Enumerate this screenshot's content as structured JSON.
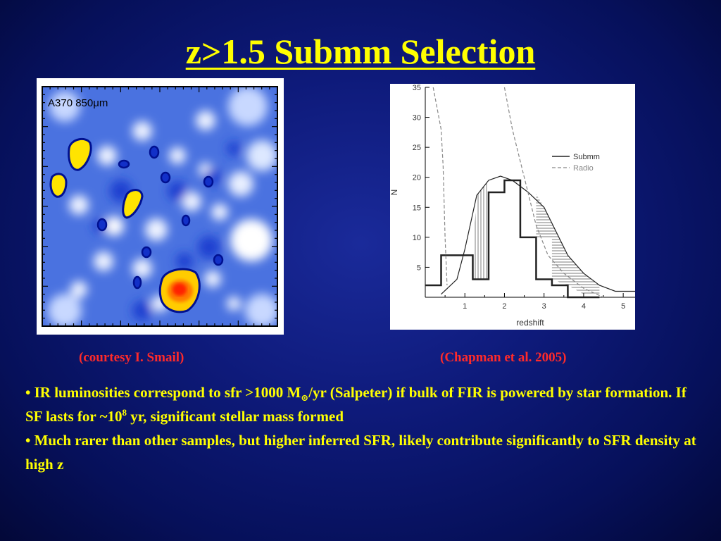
{
  "title": "z>1.5 Submm Selection",
  "left_figure": {
    "label": "A370 850μm",
    "caption": "(courtesy I. Smail)"
  },
  "right_figure": {
    "caption": "(Chapman et al. 2005)",
    "chart_data": {
      "type": "line",
      "xlabel": "redshift",
      "ylabel": "N",
      "xlim": [
        0,
        5.3
      ],
      "ylim": [
        0,
        35
      ],
      "x_ticks": [
        1,
        2,
        3,
        4,
        5
      ],
      "y_ticks": [
        5,
        10,
        15,
        20,
        25,
        30,
        35
      ],
      "legend": [
        "Submm",
        "Radio"
      ],
      "legend_position": "top-right",
      "series": [
        {
          "name": "Submm",
          "style": "histogram",
          "edges": [
            0,
            0.4,
            0.8,
            1.2,
            1.6,
            2.0,
            2.4,
            2.8,
            3.2,
            3.6,
            4.0,
            4.4
          ],
          "values": [
            2,
            7,
            7,
            3,
            17.5,
            19.5,
            10,
            3,
            2,
            0,
            0
          ]
        },
        {
          "name": "Submm (smoothed)",
          "style": "solid",
          "x": [
            0.4,
            0.8,
            1.0,
            1.3,
            1.6,
            1.9,
            2.2,
            2.6,
            3.0,
            3.3,
            3.6,
            4.0,
            4.4,
            4.8,
            5.3
          ],
          "y": [
            0.5,
            3,
            8,
            17,
            19.5,
            20.2,
            19.5,
            17.5,
            15,
            11,
            7,
            4,
            2,
            1,
            1
          ]
        },
        {
          "name": "Radio",
          "style": "dashed",
          "x": [
            0.2,
            0.4,
            2.0,
            2.2,
            2.5,
            2.8,
            3.1,
            3.5,
            4.0,
            4.5
          ],
          "y": [
            35,
            28,
            35,
            28,
            20,
            12,
            7,
            4,
            1.5,
            0
          ]
        }
      ]
    }
  },
  "bullets": {
    "b1_part1": "• IR luminosities correspond to sfr >1000 M",
    "b1_sun": "⊙",
    "b1_part2": "/yr (Salpeter) if bulk of FIR is powered by star formation. If SF lasts for ~10",
    "b1_exp": "8",
    "b1_part3": " yr, significant stellar mass formed",
    "b2": "• Much rarer than other samples, but higher inferred SFR, likely contribute significantly to SFR density at high z"
  }
}
